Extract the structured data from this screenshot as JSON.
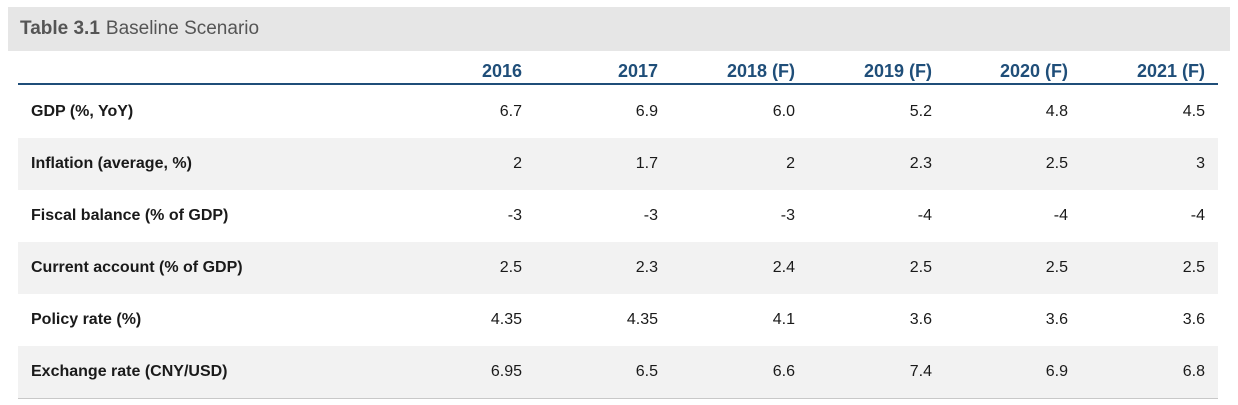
{
  "title": {
    "number": "Table 3.1",
    "caption": "Baseline Scenario"
  },
  "columns": [
    "2016",
    "2017",
    "2018 (F)",
    "2019 (F)",
    "2020 (F)",
    "2021 (F)"
  ],
  "rows": [
    {
      "label": "GDP (%, YoY)",
      "values": [
        "6.7",
        "6.9",
        "6.0",
        "5.2",
        "4.8",
        "4.5"
      ]
    },
    {
      "label": "Inflation (average, %)",
      "values": [
        "2",
        "1.7",
        "2",
        "2.3",
        "2.5",
        "3"
      ]
    },
    {
      "label": "Fiscal balance (% of GDP)",
      "values": [
        "-3",
        "-3",
        "-3",
        "-4",
        "-4",
        "-4"
      ]
    },
    {
      "label": "Current account (% of GDP)",
      "values": [
        "2.5",
        "2.3",
        "2.4",
        "2.5",
        "2.5",
        "2.5"
      ]
    },
    {
      "label": "Policy rate (%)",
      "values": [
        "4.35",
        "4.35",
        "4.1",
        "3.6",
        "3.6",
        "3.6"
      ]
    },
    {
      "label": "Exchange rate (CNY/USD)",
      "values": [
        "6.95",
        "6.5",
        "6.6",
        "7.4",
        "6.9",
        "6.8"
      ]
    }
  ],
  "colors": {
    "header_text": "#1f4e79",
    "header_rule": "#1f4e79",
    "title_bar_bg": "#e6e6e6",
    "row_shade": "#f2f2f2"
  }
}
